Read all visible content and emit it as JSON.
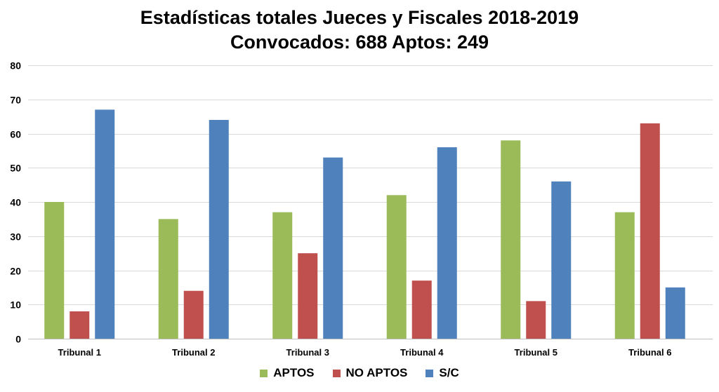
{
  "chart_data": {
    "type": "bar",
    "title": "Estadísticas totales Jueces y Fiscales 2018-2019",
    "subtitle": "Convocados: 688 Aptos:  249",
    "xlabel": "",
    "ylabel": "",
    "categories": [
      "Tribunal 1",
      "Tribunal 2",
      "Tribunal 3",
      "Tribunal 4",
      "Tribunal 5",
      "Tribunal 6"
    ],
    "series": [
      {
        "name": "APTOS",
        "color": "#9bbb59",
        "values": [
          40,
          35,
          37,
          42,
          58,
          37
        ]
      },
      {
        "name": "NO APTOS",
        "color": "#c0504d",
        "values": [
          8,
          14,
          25,
          17,
          11,
          63
        ]
      },
      {
        "name": "S/C",
        "color": "#4f81bd",
        "values": [
          67,
          64,
          53,
          56,
          46,
          15
        ]
      }
    ],
    "ylim": [
      0,
      80
    ],
    "yticks": [
      0,
      10,
      20,
      30,
      40,
      50,
      60,
      70,
      80
    ],
    "grid": true,
    "legend_position": "bottom"
  }
}
